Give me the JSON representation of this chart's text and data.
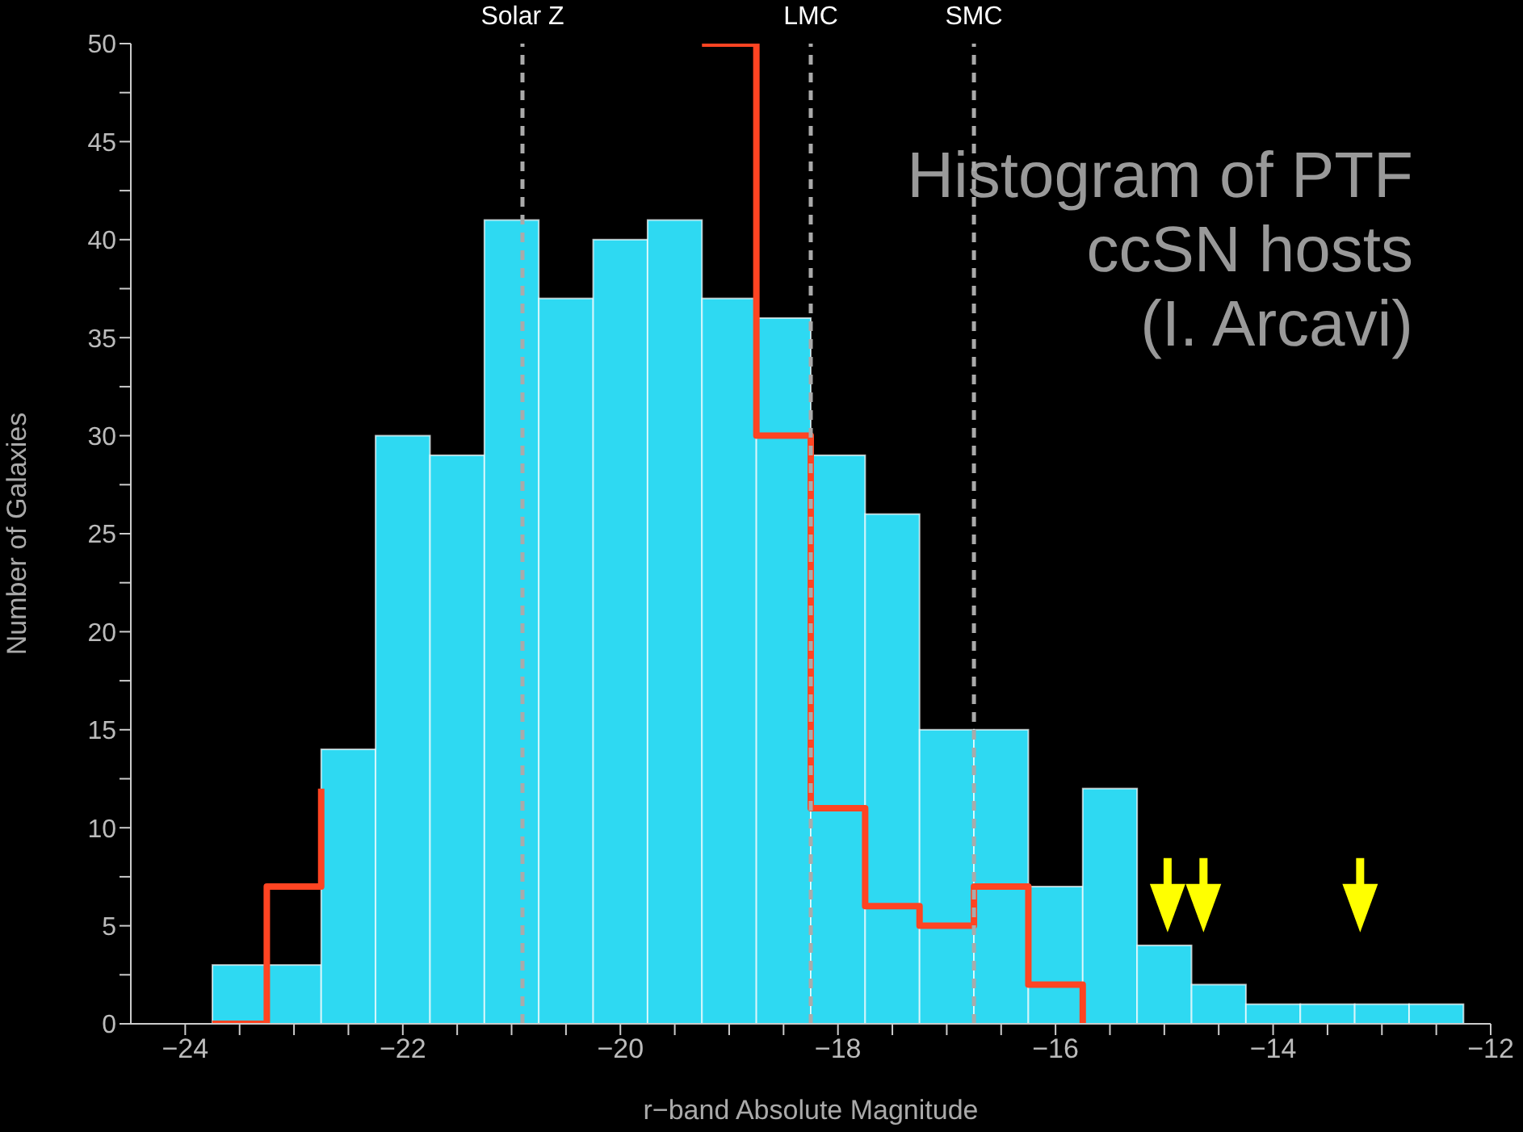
{
  "chart_data": {
    "type": "histogram",
    "title": "Histogram of PTF\nccSN hosts\n(I. Arcavi)",
    "xlabel": "r−band Absolute Magnitude",
    "ylabel": "Number of Galaxies",
    "bins": [
      -23.75,
      -23.25,
      -22.75,
      -22.25,
      -21.75,
      -21.25,
      -20.75,
      -20.25,
      -19.75,
      -19.25,
      -18.75,
      -18.25,
      -17.75,
      -17.25,
      -16.75,
      -16.25,
      -15.75,
      -15.25,
      -14.75,
      -14.25,
      -13.75,
      -13.25,
      -12.75,
      -12.25
    ],
    "series": [
      {
        "color": "#2ed9f2",
        "values": [
          3,
          3,
          14,
          30,
          29,
          41,
          37,
          40,
          41,
          37,
          36,
          29,
          26,
          15,
          15,
          7,
          12,
          4,
          2,
          1,
          1,
          1,
          1
        ]
      },
      {
        "type": "step",
        "color": "#ff4422",
        "x": [
          -23.75,
          -23.25,
          -22.75,
          -22.25,
          -19.25,
          -18.75,
          -18.25,
          -17.75,
          -17.25,
          -16.75,
          -16.25,
          -15.75
        ],
        "values": [
          0,
          7,
          12,
          null,
          50,
          30,
          11,
          6,
          5,
          7,
          2,
          0
        ]
      },
      {
        "type": "scatter",
        "color": "#ffff00",
        "marker": "triangle",
        "x": [
          -14.97,
          -14.64,
          -13.2
        ],
        "values": [
          5.9,
          5.9,
          5.9
        ]
      }
    ],
    "xlim": [
      -24.5,
      -12
    ],
    "ylim": [
      0,
      50
    ],
    "xticks": [
      {
        "value": -24,
        "label": "−24"
      },
      {
        "value": -23.5,
        "label": null
      },
      {
        "value": -23,
        "label": null
      },
      {
        "value": -22.5,
        "label": null
      },
      {
        "value": -22,
        "label": "−22"
      },
      {
        "value": -21.5,
        "label": null
      },
      {
        "value": -21,
        "label": null
      },
      {
        "value": -20.5,
        "label": null
      },
      {
        "value": -20,
        "label": "−20"
      },
      {
        "value": -19.5,
        "label": null
      },
      {
        "value": -19,
        "label": null
      },
      {
        "value": -18.5,
        "label": null
      },
      {
        "value": -18,
        "label": "−18"
      },
      {
        "value": -17.5,
        "label": null
      },
      {
        "value": -17,
        "label": null
      },
      {
        "value": -16.5,
        "label": null
      },
      {
        "value": -16,
        "label": "−16"
      },
      {
        "value": -15.5,
        "label": null
      },
      {
        "value": -15,
        "label": null
      },
      {
        "value": -14.5,
        "label": null
      },
      {
        "value": -14,
        "label": "−14"
      },
      {
        "value": -13.5,
        "label": null
      },
      {
        "value": -13,
        "label": null
      },
      {
        "value": -12.5,
        "label": null
      },
      {
        "value": -12,
        "label": "−12"
      }
    ],
    "yticks": [
      0,
      {
        "value": 2.5,
        "label": null
      },
      5,
      {
        "value": 7.5,
        "label": null
      },
      10,
      {
        "value": 12.5,
        "label": null
      },
      15,
      {
        "value": 17.5,
        "label": null
      },
      20,
      {
        "value": 22.5,
        "label": null
      },
      25,
      {
        "value": 27.5,
        "label": null
      },
      30,
      {
        "value": 32.5,
        "label": null
      },
      35,
      {
        "value": 37.5,
        "label": null
      },
      40,
      {
        "value": 42.5,
        "label": null
      },
      45,
      {
        "value": 47.5,
        "label": null
      },
      50
    ],
    "ref_lines": [
      {
        "axis": "x",
        "value": -20.9,
        "label": "Solar Z",
        "color": "#aaaaaa",
        "line_style": "dashed"
      },
      {
        "axis": "x",
        "value": -18.25,
        "label": "LMC",
        "color": "#aaaaaa",
        "line_style": "dashed"
      },
      {
        "axis": "x",
        "value": -16.75,
        "label": "SMC",
        "color": "#aaaaaa",
        "line_style": "dashed"
      }
    ]
  }
}
